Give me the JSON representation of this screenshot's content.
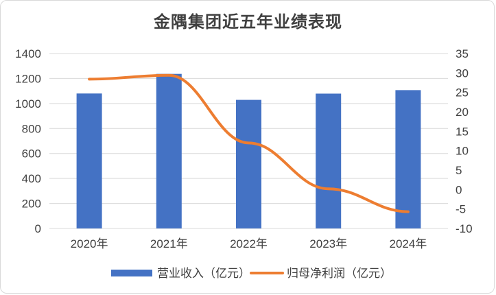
{
  "chart_data": {
    "type": "bar",
    "title": "金隅集团近五年业绩表现",
    "categories": [
      "2020年",
      "2021年",
      "2022年",
      "2023年",
      "2024年"
    ],
    "series": [
      {
        "name": "营业收入（亿元）",
        "type": "bar",
        "axis": "left",
        "color": "#4472c4",
        "values": [
          1080,
          1237,
          1029,
          1079,
          1107
        ]
      },
      {
        "name": "归母净利润（亿元）",
        "type": "line",
        "axis": "right",
        "color": "#ed7d31",
        "values": [
          28.4,
          29.4,
          12.0,
          0.2,
          -5.7
        ]
      }
    ],
    "y_left": {
      "min": 0,
      "max": 1400,
      "ticks": [
        "0",
        "200",
        "400",
        "600",
        "800",
        "1000",
        "1200",
        "1400"
      ]
    },
    "y_right": {
      "min": -10,
      "max": 35,
      "ticks": [
        "-10",
        "-5",
        "0",
        "5",
        "10",
        "15",
        "20",
        "25",
        "30",
        "35"
      ]
    },
    "grid": true,
    "legend": "bottom"
  }
}
